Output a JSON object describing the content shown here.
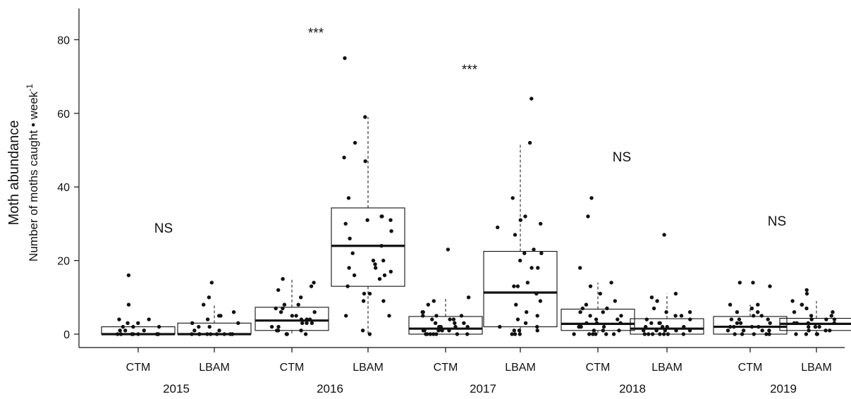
{
  "chart_data": {
    "type": "box",
    "y_axis": {
      "title": "Moth abundance",
      "subtitle_text": "Number of moths caught • week",
      "subtitle_exponent": "-1",
      "ticks": [
        0,
        20,
        40,
        60,
        80
      ],
      "range": [
        -5,
        90
      ]
    },
    "groups": [
      {
        "year": "2015",
        "significance": "NS"
      },
      {
        "year": "2016",
        "significance": "***"
      },
      {
        "year": "2017",
        "significance": "***"
      },
      {
        "year": "2018",
        "significance": "NS"
      },
      {
        "year": "2019",
        "significance": "NS"
      }
    ],
    "series": [
      {
        "species": "CTM",
        "year": "2015",
        "whisker_low": 0,
        "q1": 0,
        "median": 0,
        "q3": 2,
        "whisker_high": 2,
        "points": [
          0,
          0,
          0,
          0,
          0,
          0,
          0,
          0,
          1,
          1,
          1,
          2,
          2,
          2,
          3,
          3,
          4,
          4,
          8,
          16
        ]
      },
      {
        "species": "LBAM",
        "year": "2015",
        "whisker_low": 0,
        "q1": 0,
        "median": 0,
        "q3": 3,
        "whisker_high": 8,
        "points": [
          0,
          0,
          0,
          0,
          0,
          0,
          0,
          0,
          0,
          1,
          1,
          2,
          2,
          3,
          3,
          4,
          5,
          5,
          6,
          8,
          10,
          14
        ]
      },
      {
        "species": "CTM",
        "year": "2016",
        "whisker_low": 0,
        "q1": 1,
        "median": 3.7,
        "q3": 7.3,
        "whisker_high": 15,
        "points": [
          0,
          0,
          0,
          0,
          1,
          1,
          1,
          2,
          2,
          3,
          3,
          3,
          4,
          4,
          4,
          5,
          5,
          6,
          6,
          7,
          7,
          8,
          8,
          10,
          12,
          13,
          14,
          15
        ]
      },
      {
        "species": "LBAM",
        "year": "2016",
        "whisker_low": 0,
        "q1": 13,
        "median": 24,
        "q3": 34.3,
        "whisker_high": 59,
        "points": [
          0,
          1,
          5,
          5,
          9,
          9,
          11,
          11,
          13,
          15,
          16,
          16,
          17,
          18,
          18,
          19,
          20,
          20,
          22,
          24,
          26,
          28,
          30,
          31,
          31,
          32,
          32,
          37,
          47,
          48,
          52,
          59,
          75
        ]
      },
      {
        "species": "CTM",
        "year": "2017",
        "whisker_low": 0,
        "q1": 0,
        "median": 1.5,
        "q3": 4.8,
        "whisker_high": 10,
        "points": [
          0,
          0,
          0,
          0,
          0,
          0,
          0,
          1,
          1,
          1,
          1,
          1,
          2,
          2,
          2,
          2,
          3,
          3,
          3,
          4,
          4,
          4,
          5,
          5,
          5,
          6,
          6,
          8,
          9,
          10,
          23
        ]
      },
      {
        "species": "LBAM",
        "year": "2017",
        "whisker_low": 0,
        "q1": 2,
        "median": 11.3,
        "q3": 22.5,
        "whisker_high": 52,
        "points": [
          0,
          0,
          0,
          1,
          1,
          1,
          2,
          2,
          3,
          4,
          5,
          6,
          8,
          9,
          11,
          13,
          13,
          14,
          18,
          18,
          20,
          22,
          22,
          23,
          27,
          29,
          30,
          31,
          32,
          37,
          52,
          64
        ]
      },
      {
        "species": "CTM",
        "year": "2018",
        "whisker_low": 0,
        "q1": 1,
        "median": 2.8,
        "q3": 6.8,
        "whisker_high": 14,
        "points": [
          0,
          0,
          0,
          0,
          0,
          0,
          1,
          1,
          1,
          2,
          2,
          2,
          2,
          3,
          3,
          3,
          4,
          4,
          5,
          5,
          6,
          6,
          7,
          7,
          8,
          9,
          11,
          13,
          14,
          18,
          32,
          37
        ]
      },
      {
        "species": "LBAM",
        "year": "2018",
        "whisker_low": 0,
        "q1": 0,
        "median": 1.5,
        "q3": 4.2,
        "whisker_high": 11,
        "points": [
          0,
          0,
          0,
          0,
          0,
          0,
          0,
          1,
          1,
          1,
          1,
          1,
          2,
          2,
          2,
          2,
          3,
          3,
          3,
          4,
          4,
          5,
          5,
          6,
          6,
          7,
          9,
          10,
          11,
          27
        ]
      },
      {
        "species": "CTM",
        "year": "2019",
        "whisker_low": 0,
        "q1": 0,
        "median": 2,
        "q3": 4.8,
        "whisker_high": 8,
        "points": [
          0,
          0,
          0,
          0,
          0,
          1,
          1,
          1,
          1,
          2,
          2,
          2,
          2,
          3,
          3,
          3,
          4,
          4,
          4,
          5,
          5,
          6,
          6,
          7,
          8,
          8,
          13,
          14,
          14
        ]
      },
      {
        "species": "LBAM",
        "year": "2019",
        "whisker_low": 0,
        "q1": 1,
        "median": 2.8,
        "q3": 4.3,
        "whisker_high": 9,
        "points": [
          0,
          0,
          0,
          0,
          1,
          1,
          1,
          2,
          2,
          2,
          2,
          3,
          3,
          3,
          3,
          4,
          4,
          4,
          5,
          5,
          6,
          6,
          7,
          8,
          8,
          9,
          11,
          12
        ]
      }
    ]
  }
}
